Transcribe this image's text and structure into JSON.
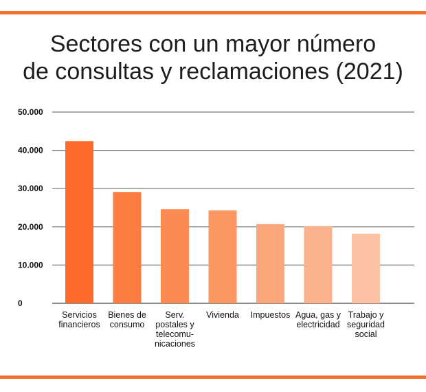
{
  "chart_data": {
    "type": "bar",
    "title": [
      "Sectores con un mayor número",
      "de consultas y reclamaciones (2021)"
    ],
    "categories": [
      [
        "Servicios",
        "financieros"
      ],
      [
        "Bienes de",
        "consumo"
      ],
      [
        "Serv.",
        "postales y",
        "telecomu-",
        "nicaciones"
      ],
      [
        "Vivienda"
      ],
      [
        "Impuestos"
      ],
      [
        "Agua, gas y",
        "electricidad"
      ],
      [
        "Trabajo y",
        "seguridad",
        "social"
      ]
    ],
    "values": [
      42400,
      29100,
      24600,
      24300,
      20700,
      20200,
      18200
    ],
    "colors": [
      "#fd6a2c",
      "#fd7d40",
      "#fc8a52",
      "#fc9663",
      "#fba77c",
      "#fbb38e",
      "#fbc3a3"
    ],
    "yticks": [
      0,
      10000,
      20000,
      30000,
      40000,
      50000
    ],
    "ytick_labels": [
      "0",
      "10.000",
      "20.000",
      "30.000",
      "40.000",
      "50.000"
    ],
    "ylim": [
      0,
      50000
    ],
    "grid": true,
    "accent": "#f2732f"
  }
}
